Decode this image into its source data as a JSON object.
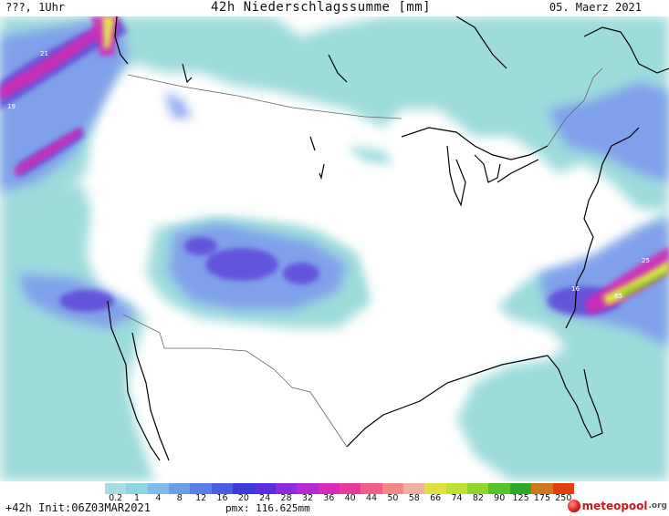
{
  "header": {
    "left": "???, 1Uhr",
    "title": "42h Niederschlagssumme [mm]",
    "date": "05. Maerz 2021"
  },
  "map": {
    "labels": [
      "21",
      "19",
      "16",
      "65",
      "25"
    ]
  },
  "legend": {
    "ticks": [
      "0.2",
      "1",
      "4",
      "8",
      "12",
      "16",
      "20",
      "24",
      "28",
      "32",
      "36",
      "40",
      "44",
      "50",
      "58",
      "66",
      "74",
      "82",
      "90",
      "125",
      "175",
      "250"
    ],
    "colors": [
      "#a7dde0",
      "#8fd3e0",
      "#82b9e8",
      "#6f9ee8",
      "#5a7fe6",
      "#4a5ee0",
      "#3c3ad8",
      "#5a2ee0",
      "#8a2cdc",
      "#b42ad0",
      "#d62ab8",
      "#e63a9c",
      "#ef5f8a",
      "#f08a86",
      "#f0b0a0",
      "#e0e040",
      "#bde036",
      "#8fd62e",
      "#55c42a",
      "#2fa82a",
      "#d07820",
      "#e04010"
    ]
  },
  "footer": {
    "init": "+42h Init:06Z03MAR2021",
    "pmx": "pmx: 116.625mm",
    "logo_main": "meteopool",
    "logo_tld": ".org"
  },
  "colors": {
    "background": "#ffffff",
    "precip_light": "#8fd6d6",
    "precip_blue": "#6f88ee",
    "precip_purple": "#5a3cd6",
    "precip_magenta": "#d02ab6",
    "precip_yellow": "#e8f24a",
    "coast": "#000000",
    "border": "#666666"
  }
}
